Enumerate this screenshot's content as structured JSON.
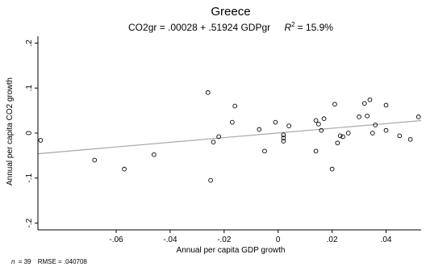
{
  "chart_data": {
    "type": "scatter",
    "title": "Greece",
    "subtitle": {
      "equation": "CO2gr = .00028 + .51924 GDPgr",
      "r2_symbol": "R",
      "r2_exponent": "2",
      "r2_value": "= 15.9%"
    },
    "xlabel": "Annual per capita GDP growth",
    "ylabel": "Annual per capita CO2 growth",
    "xlim": [
      -0.089,
      0.053
    ],
    "ylim": [
      -0.215,
      0.215
    ],
    "x_ticks": [
      {
        "value": -0.06,
        "label": "-.06"
      },
      {
        "value": -0.04,
        "label": "-.04"
      },
      {
        "value": -0.02,
        "label": "-.02"
      },
      {
        "value": 0,
        "label": "0"
      },
      {
        "value": 0.02,
        "label": ".02"
      },
      {
        "value": 0.04,
        "label": ".04"
      }
    ],
    "y_ticks": [
      {
        "value": -0.2,
        "label": "-.2"
      },
      {
        "value": -0.1,
        "label": "-.1"
      },
      {
        "value": 0,
        "label": "0"
      },
      {
        "value": 0.1,
        "label": ".1"
      },
      {
        "value": 0.2,
        "label": ".2"
      }
    ],
    "fit_line": {
      "intercept": 0.00028,
      "slope": 0.51924
    },
    "points": [
      {
        "x": -0.088,
        "y": -0.016
      },
      {
        "x": -0.068,
        "y": -0.06
      },
      {
        "x": -0.057,
        "y": -0.08
      },
      {
        "x": -0.046,
        "y": -0.048
      },
      {
        "x": -0.026,
        "y": 0.09
      },
      {
        "x": -0.025,
        "y": -0.105
      },
      {
        "x": -0.024,
        "y": -0.02
      },
      {
        "x": -0.022,
        "y": -0.008
      },
      {
        "x": -0.017,
        "y": 0.024
      },
      {
        "x": -0.016,
        "y": 0.06
      },
      {
        "x": -0.007,
        "y": 0.008
      },
      {
        "x": -0.005,
        "y": -0.04
      },
      {
        "x": -0.001,
        "y": 0.024
      },
      {
        "x": 0.002,
        "y": -0.004
      },
      {
        "x": 0.002,
        "y": -0.011
      },
      {
        "x": 0.002,
        "y": -0.018
      },
      {
        "x": 0.004,
        "y": 0.016
      },
      {
        "x": 0.014,
        "y": -0.04
      },
      {
        "x": 0.014,
        "y": 0.028
      },
      {
        "x": 0.015,
        "y": 0.02
      },
      {
        "x": 0.016,
        "y": 0.006
      },
      {
        "x": 0.017,
        "y": 0.032
      },
      {
        "x": 0.02,
        "y": -0.08
      },
      {
        "x": 0.021,
        "y": 0.064
      },
      {
        "x": 0.022,
        "y": -0.022
      },
      {
        "x": 0.023,
        "y": -0.006
      },
      {
        "x": 0.024,
        "y": -0.008
      },
      {
        "x": 0.026,
        "y": 0.0
      },
      {
        "x": 0.03,
        "y": 0.036
      },
      {
        "x": 0.032,
        "y": 0.066
      },
      {
        "x": 0.033,
        "y": 0.038
      },
      {
        "x": 0.034,
        "y": 0.074
      },
      {
        "x": 0.035,
        "y": 0.0
      },
      {
        "x": 0.036,
        "y": 0.018
      },
      {
        "x": 0.04,
        "y": 0.006
      },
      {
        "x": 0.04,
        "y": 0.062
      },
      {
        "x": 0.045,
        "y": -0.006
      },
      {
        "x": 0.049,
        "y": -0.014
      },
      {
        "x": 0.052,
        "y": 0.036
      }
    ],
    "marker": "hollow-circle",
    "grid": false,
    "footnote": {
      "n_symbol": "n",
      "n_value": "= 39",
      "rmse": "RMSE =   .040708"
    },
    "colors": {
      "points": "#000000",
      "fit_line": "#a8a8a8",
      "axis": "#000000"
    }
  }
}
